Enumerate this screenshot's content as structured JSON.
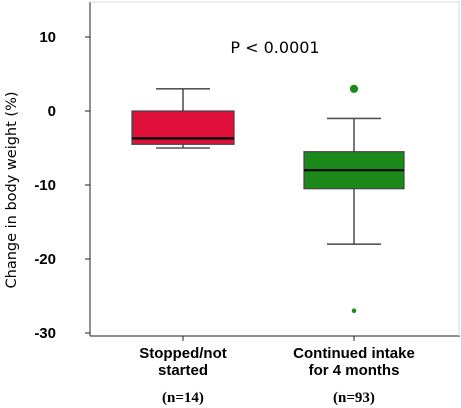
{
  "chart_data": {
    "type": "boxplot",
    "ylabel": "Change in body weight (%)",
    "ylim": [
      -30,
      14
    ],
    "yticks": [
      10,
      0,
      -10,
      -20,
      -30
    ],
    "yticklabels": [
      "10",
      "0",
      "-10",
      "-20",
      "-30"
    ],
    "annotation": "P < 0.0001",
    "categories": [
      {
        "label_lines": [
          "Stopped/not",
          "started"
        ],
        "n_label": "(n=14)",
        "color": "#e0103a",
        "min": -5.0,
        "q1": -4.5,
        "median": -3.7,
        "q3": 0.0,
        "max": 3.0,
        "outliers": []
      },
      {
        "label_lines": [
          "Continued intake",
          "for 4 months"
        ],
        "n_label": "(n=93)",
        "color": "#1b8a1b",
        "min": -18.0,
        "q1": -10.5,
        "median": -8.0,
        "q3": -5.5,
        "max": -1.0,
        "outliers": [
          3.0,
          -27.0
        ]
      }
    ]
  }
}
